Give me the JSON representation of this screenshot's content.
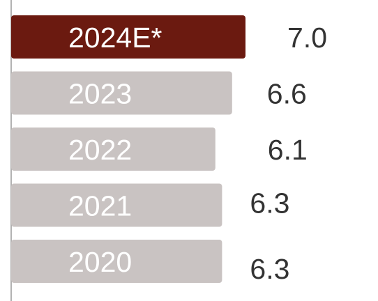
{
  "chart_data": {
    "type": "bar",
    "orientation": "horizontal",
    "categories": [
      "2024E*",
      "2023",
      "2022",
      "2021",
      "2020"
    ],
    "values": [
      7.0,
      6.6,
      6.1,
      6.3,
      6.3
    ],
    "value_labels": [
      "7.0",
      "6.6",
      "6.1",
      "6.3",
      "6.3"
    ],
    "title": "",
    "xlabel": "",
    "ylabel": "",
    "grid": false,
    "legend": "none",
    "colors": {
      "highlight": "#6b1a10",
      "default": "#c9c3c2",
      "category_text": "#ffffff",
      "value_text": "#333333",
      "axis": "#999999"
    },
    "highlight_index": 0
  }
}
